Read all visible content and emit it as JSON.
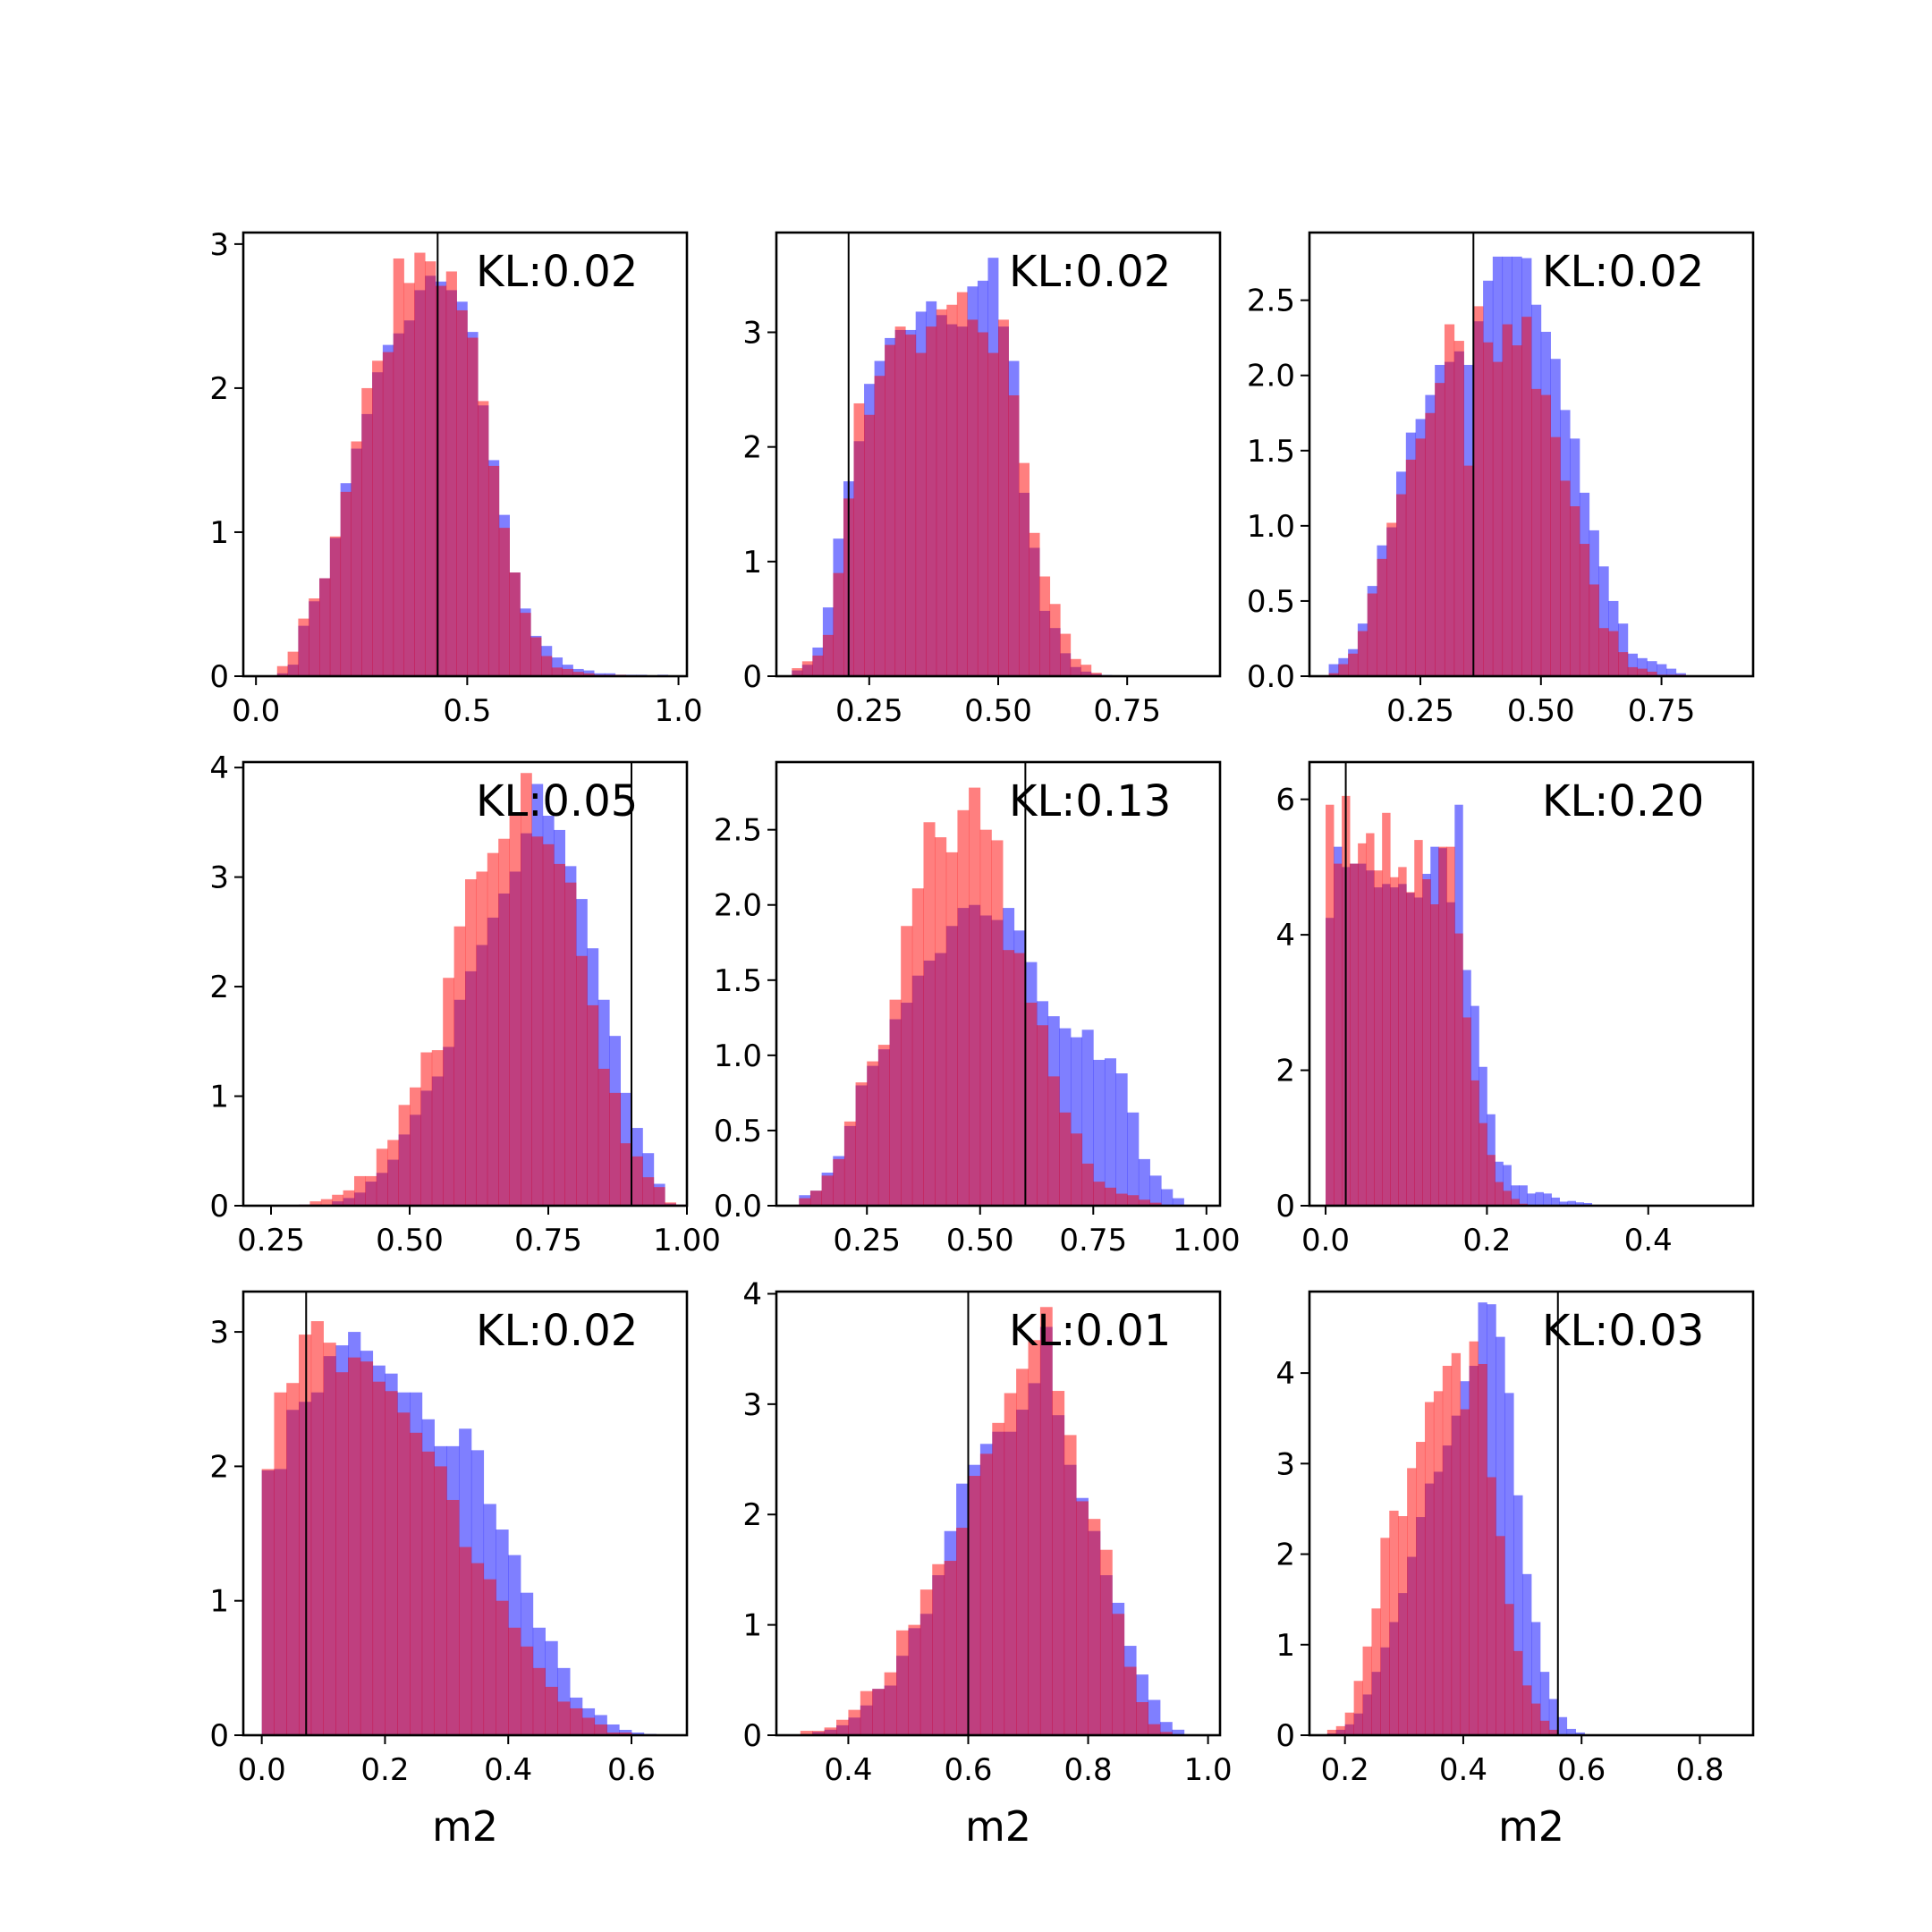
{
  "chart_data": [
    {
      "type": "histogram",
      "annotation": "KL:0.02",
      "xlabel": "",
      "xlim": [
        -0.03,
        1.02
      ],
      "ylim": [
        0,
        3.08
      ],
      "xticks": [
        0.0,
        0.5,
        1.0
      ],
      "xtick_labels": [
        "0.0",
        "0.5",
        "1.0"
      ],
      "yticks": [
        0,
        1,
        2,
        3
      ],
      "ytick_labels": [
        "0",
        "1",
        "2",
        "3"
      ],
      "vline": 0.43,
      "series": [
        {
          "color": "#0000ff",
          "bin_start": 0.05,
          "bin_width": 0.025,
          "values": [
            0.02,
            0.08,
            0.35,
            0.52,
            0.68,
            0.96,
            1.34,
            1.58,
            1.82,
            2.11,
            2.3,
            2.38,
            2.47,
            2.68,
            2.78,
            2.74,
            2.68,
            2.6,
            2.39,
            1.88,
            1.5,
            1.12,
            0.72,
            0.47,
            0.28,
            0.21,
            0.13,
            0.08,
            0.05,
            0.04,
            0.02,
            0.02,
            0.01,
            0.01,
            0.01,
            0.0,
            0.01
          ]
        },
        {
          "color": "#ff0000",
          "bin_start": 0.05,
          "bin_width": 0.025,
          "values": [
            0.07,
            0.17,
            0.4,
            0.54,
            0.68,
            0.97,
            1.28,
            1.63,
            2.0,
            2.19,
            2.25,
            2.9,
            2.73,
            2.94,
            2.88,
            2.71,
            2.81,
            2.54,
            2.35,
            1.91,
            1.46,
            1.03,
            0.72,
            0.44,
            0.27,
            0.14,
            0.06,
            0.05,
            0.03,
            0.02,
            0.01,
            0.01,
            0.01,
            0.0,
            0.0
          ]
        }
      ]
    },
    {
      "type": "histogram",
      "annotation": "KL:0.02",
      "xlabel": "",
      "xlim": [
        0.07,
        0.93
      ],
      "ylim": [
        0,
        3.87
      ],
      "xticks": [
        0.25,
        0.5,
        0.75
      ],
      "xtick_labels": [
        "0.25",
        "0.50",
        "0.75"
      ],
      "yticks": [
        0,
        1,
        2,
        3
      ],
      "ytick_labels": [
        "0",
        "1",
        "2",
        "3"
      ],
      "vline": 0.21,
      "series": [
        {
          "color": "#0000ff",
          "bin_start": 0.1,
          "bin_width": 0.02,
          "values": [
            0.05,
            0.1,
            0.25,
            0.6,
            1.2,
            1.7,
            2.05,
            2.55,
            2.75,
            2.95,
            3.02,
            3.02,
            3.18,
            3.27,
            3.15,
            3.07,
            3.05,
            3.4,
            3.45,
            3.65,
            3.05,
            2.75,
            1.6,
            1.12,
            0.57,
            0.42,
            0.2,
            0.08,
            0.04,
            0.02,
            0.01
          ]
        },
        {
          "color": "#ff0000",
          "bin_start": 0.1,
          "bin_width": 0.02,
          "values": [
            0.07,
            0.13,
            0.18,
            0.36,
            0.9,
            1.55,
            2.38,
            2.28,
            2.62,
            2.89,
            3.05,
            2.98,
            2.82,
            3.05,
            3.2,
            3.24,
            3.35,
            3.11,
            3.0,
            2.82,
            3.11,
            2.45,
            1.86,
            1.25,
            0.87,
            0.63,
            0.37,
            0.15,
            0.1,
            0.03
          ]
        }
      ]
    },
    {
      "type": "histogram",
      "annotation": "KL:0.02",
      "xlabel": "",
      "xlim": [
        0.02,
        0.94
      ],
      "ylim": [
        0,
        2.95
      ],
      "xticks": [
        0.25,
        0.5,
        0.75
      ],
      "xtick_labels": [
        "0.25",
        "0.50",
        "0.75"
      ],
      "yticks": [
        0,
        0.5,
        1.0,
        1.5,
        2.0,
        2.5
      ],
      "ytick_labels": [
        "0.0",
        "0.5",
        "1.0",
        "1.5",
        "2.0",
        "2.5"
      ],
      "vline": 0.36,
      "series": [
        {
          "color": "#0000ff",
          "bin_start": 0.06,
          "bin_width": 0.02,
          "values": [
            0.08,
            0.12,
            0.18,
            0.35,
            0.6,
            0.87,
            0.99,
            1.36,
            1.62,
            1.71,
            1.87,
            2.07,
            2.09,
            2.16,
            2.07,
            2.36,
            2.63,
            2.79,
            2.79,
            2.79,
            2.78,
            2.47,
            2.29,
            2.11,
            1.77,
            1.58,
            1.22,
            0.97,
            0.73,
            0.5,
            0.35,
            0.15,
            0.12,
            0.1,
            0.08,
            0.05,
            0.02
          ]
        },
        {
          "color": "#ff0000",
          "bin_start": 0.06,
          "bin_width": 0.02,
          "values": [
            0.02,
            0.08,
            0.15,
            0.3,
            0.55,
            0.78,
            1.02,
            1.21,
            1.44,
            1.58,
            1.75,
            1.95,
            2.34,
            2.23,
            1.4,
            2.46,
            2.22,
            2.09,
            2.34,
            2.2,
            2.39,
            1.91,
            1.87,
            1.59,
            1.3,
            1.13,
            0.88,
            0.61,
            0.32,
            0.3,
            0.16,
            0.06,
            0.05,
            0.03,
            0.01,
            0.01,
            0.01
          ]
        }
      ]
    },
    {
      "type": "histogram",
      "annotation": "KL:0.05",
      "xlabel": "",
      "xlim": [
        0.2,
        1.0
      ],
      "ylim": [
        0,
        4.05
      ],
      "xticks": [
        0.25,
        0.5,
        0.75,
        1.0
      ],
      "xtick_labels": [
        "0.25",
        "0.50",
        "0.75",
        "1.00"
      ],
      "yticks": [
        0,
        1,
        2,
        3,
        4
      ],
      "ytick_labels": [
        "0",
        "1",
        "2",
        "3",
        "4"
      ],
      "vline": 0.9,
      "series": [
        {
          "color": "#0000ff",
          "bin_start": 0.28,
          "bin_width": 0.02,
          "values": [
            0.0,
            0.01,
            0.01,
            0.01,
            0.04,
            0.07,
            0.12,
            0.22,
            0.3,
            0.42,
            0.65,
            0.83,
            1.05,
            1.18,
            1.45,
            1.88,
            2.14,
            2.38,
            2.63,
            2.85,
            3.05,
            3.4,
            3.85,
            3.56,
            3.43,
            3.1,
            2.8,
            2.35,
            1.88,
            1.55,
            1.03,
            0.71,
            0.48,
            0.2,
            0.02,
            0.01
          ]
        },
        {
          "color": "#ff0000",
          "bin_start": 0.28,
          "bin_width": 0.02,
          "values": [
            0.0,
            0.01,
            0.04,
            0.06,
            0.1,
            0.14,
            0.27,
            0.27,
            0.52,
            0.6,
            0.92,
            1.08,
            1.4,
            1.42,
            2.08,
            2.55,
            2.98,
            3.05,
            3.22,
            3.35,
            3.59,
            3.95,
            3.37,
            3.3,
            3.12,
            2.95,
            2.28,
            1.83,
            1.25,
            1.03,
            0.57,
            0.45,
            0.26,
            0.17,
            0.03,
            0.01
          ]
        }
      ]
    },
    {
      "type": "histogram",
      "annotation": "KL:0.13",
      "xlabel": "",
      "xlim": [
        0.05,
        1.03
      ],
      "ylim": [
        0,
        2.95
      ],
      "xticks": [
        0.25,
        0.5,
        0.75,
        1.0
      ],
      "xtick_labels": [
        "0.25",
        "0.50",
        "0.75",
        "1.00"
      ],
      "yticks": [
        0,
        0.5,
        1.0,
        1.5,
        2.0,
        2.5
      ],
      "ytick_labels": [
        "0.0",
        "0.5",
        "1.0",
        "1.5",
        "2.0",
        "2.5"
      ],
      "vline": 0.6,
      "series": [
        {
          "color": "#0000ff",
          "bin_start": 0.1,
          "bin_width": 0.025,
          "values": [
            0.07,
            0.1,
            0.22,
            0.33,
            0.53,
            0.8,
            0.93,
            1.04,
            1.24,
            1.35,
            1.53,
            1.63,
            1.68,
            1.86,
            1.98,
            2.0,
            1.93,
            1.9,
            1.98,
            1.83,
            1.62,
            1.36,
            1.26,
            1.18,
            1.12,
            1.17,
            0.97,
            0.98,
            0.88,
            0.62,
            0.31,
            0.2,
            0.11,
            0.05
          ]
        },
        {
          "color": "#ff0000",
          "bin_start": 0.1,
          "bin_width": 0.025,
          "values": [
            0.05,
            0.1,
            0.2,
            0.31,
            0.56,
            0.82,
            0.96,
            1.07,
            1.37,
            1.86,
            2.11,
            2.55,
            2.45,
            2.35,
            2.63,
            2.78,
            2.5,
            2.43,
            1.7,
            1.68,
            1.35,
            1.2,
            0.86,
            0.62,
            0.48,
            0.28,
            0.16,
            0.12,
            0.08,
            0.07,
            0.04,
            0.02
          ]
        }
      ]
    },
    {
      "type": "histogram",
      "annotation": "KL:0.20",
      "xlabel": "",
      "xlim": [
        -0.02,
        0.53
      ],
      "ylim": [
        0,
        6.55
      ],
      "xticks": [
        0.0,
        0.2,
        0.4
      ],
      "xtick_labels": [
        "0.0",
        "0.2",
        "0.4"
      ],
      "yticks": [
        0,
        2,
        4,
        6
      ],
      "ytick_labels": [
        "0",
        "2",
        "4",
        "6"
      ],
      "vline": 0.025,
      "series": [
        {
          "color": "#0000ff",
          "bin_start": 0.0,
          "bin_width": 0.01,
          "values": [
            4.25,
            5.3,
            5.0,
            5.05,
            5.05,
            4.95,
            4.7,
            4.75,
            4.7,
            4.75,
            4.62,
            4.55,
            4.9,
            5.3,
            5.28,
            4.48,
            5.92,
            3.48,
            2.95,
            2.05,
            1.35,
            0.65,
            0.6,
            0.3,
            0.3,
            0.18,
            0.2,
            0.18,
            0.12,
            0.06,
            0.07,
            0.05,
            0.04,
            0.01,
            0.01,
            0.01
          ]
        },
        {
          "color": "#ff0000",
          "bin_start": 0.0,
          "bin_width": 0.01,
          "values": [
            5.92,
            5.05,
            6.05,
            5.05,
            5.35,
            5.5,
            4.95,
            5.8,
            4.85,
            5.0,
            4.63,
            5.4,
            4.82,
            4.45,
            5.3,
            5.3,
            4.02,
            2.78,
            1.85,
            1.22,
            0.75,
            0.35,
            0.22,
            0.1,
            0.03
          ]
        }
      ]
    },
    {
      "type": "histogram",
      "annotation": "KL:0.02",
      "xlabel": "m2",
      "xlim": [
        -0.03,
        0.69
      ],
      "ylim": [
        0,
        3.3
      ],
      "xticks": [
        0.0,
        0.2,
        0.4,
        0.6
      ],
      "xtick_labels": [
        "0.0",
        "0.2",
        "0.4",
        "0.6"
      ],
      "yticks": [
        0,
        1,
        2,
        3
      ],
      "ytick_labels": [
        "0",
        "1",
        "2",
        "3"
      ],
      "vline": 0.072,
      "series": [
        {
          "color": "#0000ff",
          "bin_start": 0.0,
          "bin_width": 0.02,
          "values": [
            1.97,
            1.98,
            2.42,
            2.48,
            2.55,
            2.82,
            2.9,
            3.0,
            2.86,
            2.75,
            2.69,
            2.55,
            2.55,
            2.35,
            2.15,
            2.15,
            2.28,
            2.12,
            1.72,
            1.53,
            1.34,
            1.06,
            0.8,
            0.7,
            0.5,
            0.28,
            0.2,
            0.15,
            0.08,
            0.04,
            0.02,
            0.01
          ]
        },
        {
          "color": "#ff0000",
          "bin_start": 0.0,
          "bin_width": 0.02,
          "values": [
            1.98,
            2.55,
            2.62,
            2.98,
            3.08,
            2.92,
            2.7,
            2.81,
            2.78,
            2.63,
            2.56,
            2.4,
            2.25,
            2.11,
            2.0,
            1.75,
            1.4,
            1.28,
            1.16,
            1.0,
            0.8,
            0.66,
            0.5,
            0.36,
            0.25,
            0.2,
            0.13,
            0.08,
            0.02,
            0.02
          ]
        }
      ]
    },
    {
      "type": "histogram",
      "annotation": "KL:0.01",
      "xlabel": "m2",
      "xlim": [
        0.28,
        1.02
      ],
      "ylim": [
        0,
        4.02
      ],
      "xticks": [
        0.4,
        0.6,
        0.8,
        1.0
      ],
      "xtick_labels": [
        "0.4",
        "0.6",
        "0.8",
        "1.0"
      ],
      "yticks": [
        0,
        1,
        2,
        3,
        4
      ],
      "ytick_labels": [
        "0",
        "1",
        "2",
        "3",
        "4"
      ],
      "vline": 0.6,
      "series": [
        {
          "color": "#0000ff",
          "bin_start": 0.32,
          "bin_width": 0.02,
          "values": [
            0.01,
            0.03,
            0.05,
            0.09,
            0.16,
            0.27,
            0.42,
            0.45,
            0.72,
            0.97,
            1.1,
            1.45,
            1.85,
            2.28,
            2.45,
            2.64,
            2.75,
            2.75,
            2.95,
            3.19,
            3.7,
            2.9,
            2.45,
            2.15,
            1.85,
            1.45,
            1.2,
            0.81,
            0.55,
            0.32,
            0.12,
            0.05
          ]
        },
        {
          "color": "#ff0000",
          "bin_start": 0.32,
          "bin_width": 0.02,
          "values": [
            0.04,
            0.04,
            0.07,
            0.14,
            0.23,
            0.4,
            0.42,
            0.57,
            0.95,
            1.0,
            1.32,
            1.55,
            1.58,
            1.88,
            2.35,
            2.55,
            2.83,
            3.1,
            3.32,
            3.58,
            3.88,
            3.12,
            2.72,
            2.12,
            1.96,
            1.68,
            1.1,
            0.62,
            0.3,
            0.1,
            0.03
          ]
        }
      ]
    },
    {
      "type": "histogram",
      "annotation": "KL:0.03",
      "xlabel": "m2",
      "xlim": [
        0.14,
        0.89
      ],
      "ylim": [
        0,
        4.9
      ],
      "xticks": [
        0.2,
        0.4,
        0.6,
        0.8
      ],
      "xtick_labels": [
        "0.2",
        "0.4",
        "0.6",
        "0.8"
      ],
      "yticks": [
        0,
        1,
        2,
        3,
        4
      ],
      "ytick_labels": [
        "0",
        "1",
        "2",
        "3",
        "4"
      ],
      "vline": 0.56,
      "series": [
        {
          "color": "#0000ff",
          "bin_start": 0.17,
          "bin_width": 0.015,
          "values": [
            0.02,
            0.06,
            0.12,
            0.24,
            0.45,
            0.7,
            0.97,
            1.25,
            1.57,
            1.97,
            2.41,
            2.78,
            2.91,
            3.2,
            3.53,
            3.91,
            4.08,
            4.78,
            4.76,
            4.4,
            3.78,
            2.65,
            1.78,
            1.25,
            0.7,
            0.4,
            0.2,
            0.07,
            0.03,
            0.01
          ]
        },
        {
          "color": "#ff0000",
          "bin_start": 0.17,
          "bin_width": 0.015,
          "values": [
            0.06,
            0.1,
            0.25,
            0.6,
            0.98,
            1.4,
            2.18,
            2.48,
            2.42,
            2.95,
            3.24,
            3.68,
            3.8,
            4.08,
            4.22,
            3.6,
            4.35,
            4.1,
            2.85,
            2.2,
            1.45,
            0.93,
            0.55,
            0.35,
            0.16,
            0.06
          ]
        }
      ]
    }
  ]
}
